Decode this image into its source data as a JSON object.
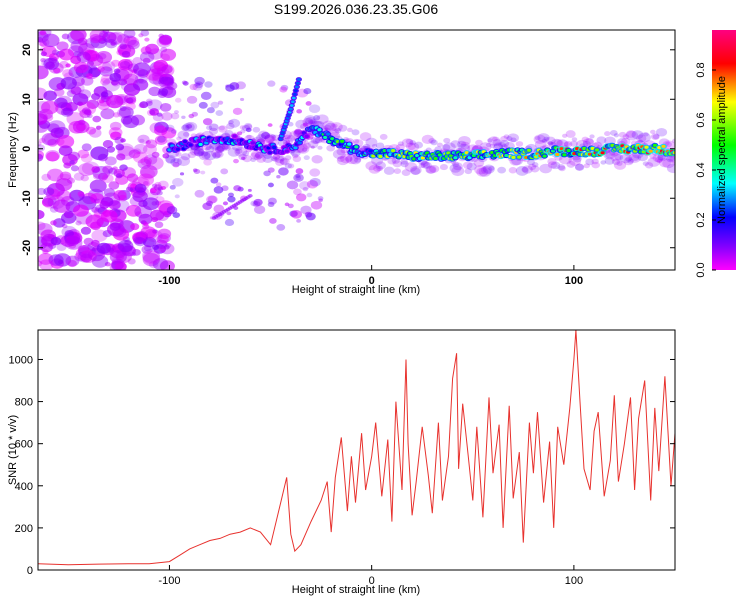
{
  "title": "S199.2026.036.23.35.G06",
  "chart_data": [
    {
      "type": "heatmap",
      "xlabel": "Height of straight line (km)",
      "ylabel": "Frequency (Hz)",
      "xlim": [
        -165,
        150
      ],
      "ylim": [
        -24.5,
        24
      ],
      "xticks": [
        -100,
        0,
        100
      ],
      "yticks": [
        -20,
        -10,
        0,
        10,
        20
      ],
      "colorbar": {
        "label": "Normalized spectral amplitude",
        "range": [
          0,
          0.96
        ],
        "ticks": [
          0.0,
          0.2,
          0.4,
          0.6,
          0.8
        ],
        "colormap": [
          "#ff00ff",
          "#8000ff",
          "#0000ff",
          "#00ffff",
          "#00ff00",
          "#ffff00",
          "#ff0000",
          "#ff0080"
        ]
      },
      "ridge": {
        "x": [
          -100,
          -90,
          -80,
          -70,
          -60,
          -50,
          -40,
          -30,
          -20,
          -10,
          0,
          10,
          20,
          30,
          40,
          50,
          60,
          70,
          80,
          90,
          100,
          110,
          120,
          130,
          140,
          150
        ],
        "y": [
          0,
          1,
          2,
          2,
          1,
          0,
          0,
          4,
          2,
          0,
          -1,
          -1,
          -1.5,
          -1.5,
          -1.5,
          -1.5,
          -1,
          -1,
          -1,
          -0.5,
          -0.5,
          -0.5,
          0,
          0,
          0,
          -0.5
        ]
      },
      "branch": {
        "x": [
          -45,
          -40,
          -36
        ],
        "y": [
          2,
          8,
          14
        ]
      }
    },
    {
      "type": "line",
      "xlabel": "Height of straight line (km)",
      "ylabel": "SNR (10 * v/v)",
      "xlim": [
        -165,
        150
      ],
      "ylim": [
        0,
        1140
      ],
      "xticks": [
        -100,
        0,
        100
      ],
      "yticks": [
        0,
        200,
        400,
        600,
        800,
        1000
      ],
      "color": "#e8322e",
      "series": [
        {
          "x": [
            -165,
            -150,
            -135,
            -120,
            -110,
            -100,
            -95,
            -90,
            -85,
            -80,
            -75,
            -70,
            -65,
            -60,
            -55,
            -50,
            -45,
            -42,
            -40,
            -38,
            -35,
            -30,
            -25,
            -22,
            -20,
            -18,
            -15,
            -12,
            -10,
            -8,
            -5,
            -3,
            0,
            2,
            5,
            8,
            10,
            12,
            15,
            17,
            18,
            20,
            22,
            25,
            28,
            30,
            33,
            35,
            38,
            40,
            42,
            43,
            45,
            48,
            50,
            52,
            55,
            58,
            60,
            63,
            65,
            68,
            70,
            73,
            75,
            78,
            80,
            82,
            85,
            88,
            90,
            92,
            95,
            98,
            100,
            101,
            103,
            105,
            108,
            110,
            112,
            115,
            118,
            120,
            122,
            125,
            128,
            130,
            132,
            135,
            138,
            140,
            142,
            145,
            148,
            150
          ],
          "y": [
            30,
            25,
            28,
            30,
            30,
            40,
            70,
            100,
            120,
            140,
            150,
            170,
            180,
            200,
            180,
            120,
            320,
            440,
            170,
            90,
            120,
            230,
            330,
            420,
            180,
            440,
            630,
            280,
            540,
            320,
            650,
            380,
            540,
            700,
            350,
            620,
            230,
            800,
            380,
            1000,
            600,
            260,
            420,
            680,
            450,
            270,
            700,
            330,
            540,
            910,
            1030,
            480,
            790,
            520,
            330,
            680,
            250,
            820,
            460,
            690,
            200,
            780,
            340,
            560,
            130,
            700,
            460,
            750,
            320,
            610,
            200,
            680,
            500,
            770,
            1000,
            1140,
            800,
            480,
            380,
            660,
            750,
            350,
            520,
            830,
            420,
            600,
            820,
            380,
            720,
            900,
            330,
            770,
            470,
            920,
            400,
            650
          ]
        }
      ]
    }
  ]
}
